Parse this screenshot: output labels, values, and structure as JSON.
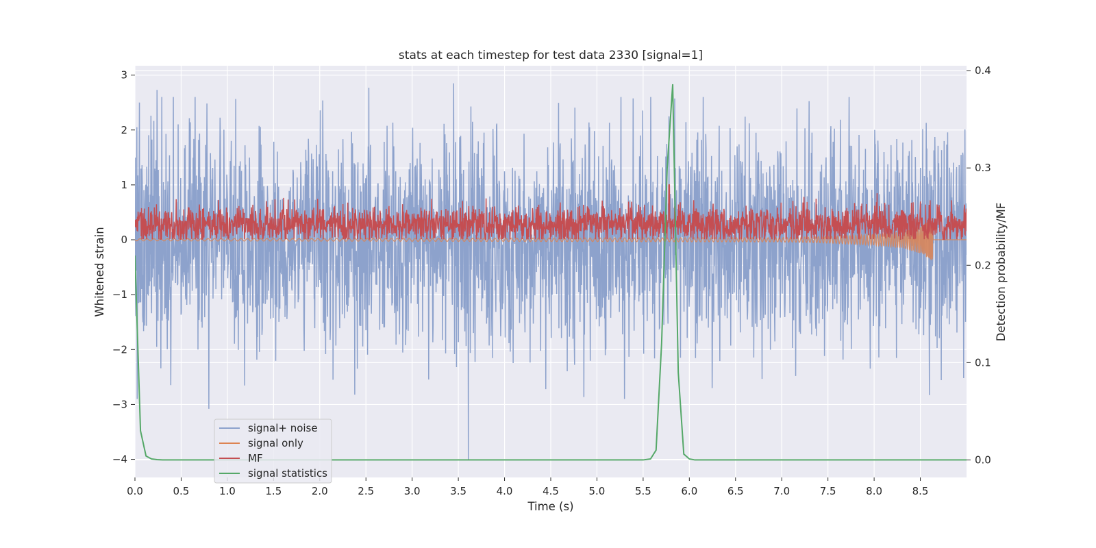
{
  "chart_data": {
    "type": "line",
    "title": "stats at each timestep for test data 2330 [signal=1]",
    "xlabel": "Time (s)",
    "ylabel": "Whitened strain",
    "y2label": "Detection probability/MF",
    "xlim": [
      0.0,
      9.0
    ],
    "ylim": [
      -4.33,
      3.17
    ],
    "y2lim": [
      -0.018,
      0.405
    ],
    "x_ticks": [
      "0.0",
      "0.5",
      "1.0",
      "1.5",
      "2.0",
      "2.5",
      "3.0",
      "3.5",
      "4.0",
      "4.5",
      "5.0",
      "5.5",
      "6.0",
      "6.5",
      "7.0",
      "7.5",
      "8.0",
      "8.5"
    ],
    "y_ticks": [
      "−4",
      "−3",
      "−2",
      "−1",
      "0",
      "1",
      "2",
      "3"
    ],
    "y2_ticks": [
      "0.0",
      "0.1",
      "0.2",
      "0.3",
      "0.4"
    ],
    "grid": true,
    "legend_position": "lower-left",
    "colors": {
      "background": "#eaeaf2",
      "grid": "#ffffff",
      "noise": "#8da2cc",
      "signal": "#dd8452",
      "mf": "#c44e52",
      "stat": "#55a868"
    },
    "series": [
      {
        "name": "signal+ noise",
        "axis": "left",
        "kind": "noise",
        "x_range": [
          0.0,
          9.0
        ],
        "amplitude_std": 0.95,
        "y_extremes": [
          {
            "x": 0.02,
            "y": 2.05
          },
          {
            "x": 0.05,
            "y": 2.5
          },
          {
            "x": 0.24,
            "y": 2.73
          },
          {
            "x": 0.8,
            "y": -3.08
          },
          {
            "x": 2.53,
            "y": 2.77
          },
          {
            "x": 3.45,
            "y": 2.85
          },
          {
            "x": 3.61,
            "y": -4.0
          },
          {
            "x": 5.78,
            "y": 2.25
          },
          {
            "x": 8.6,
            "y": -2.83
          },
          {
            "x": 8.97,
            "y": -2.52
          }
        ]
      },
      {
        "name": "signal only",
        "axis": "left",
        "kind": "chirp",
        "x": [
          0.0,
          7.0,
          7.5,
          8.0,
          8.3,
          8.5,
          8.6,
          8.63,
          8.64
        ],
        "envelope": [
          0.02,
          0.04,
          0.06,
          0.1,
          0.15,
          0.25,
          0.35,
          0.42,
          0.0
        ]
      },
      {
        "name": "MF",
        "axis": "left",
        "kind": "noise-band",
        "x_range": [
          0.0,
          9.0
        ],
        "center": 0.28,
        "band_min": 0.0,
        "band_max": 1.0,
        "peak": {
          "x": 5.78,
          "y": 1.0
        }
      },
      {
        "name": "signal statistics",
        "axis": "right",
        "x": [
          0.0,
          0.06,
          0.12,
          0.18,
          0.24,
          0.3,
          0.5,
          1.0,
          2.0,
          3.0,
          4.0,
          5.0,
          5.5,
          5.58,
          5.64,
          5.7,
          5.76,
          5.82,
          5.88,
          5.94,
          6.0,
          6.06,
          6.2,
          6.5,
          7.0,
          8.0,
          9.0
        ],
        "y": [
          0.21,
          0.03,
          0.004,
          0.001,
          0.0003,
          0.0,
          0.0,
          0.0,
          0.0,
          0.0,
          0.0,
          0.0,
          0.0,
          0.001,
          0.01,
          0.12,
          0.3,
          0.386,
          0.09,
          0.006,
          0.001,
          0.0,
          0.0,
          0.0,
          0.0,
          0.0,
          0.0
        ]
      }
    ]
  }
}
